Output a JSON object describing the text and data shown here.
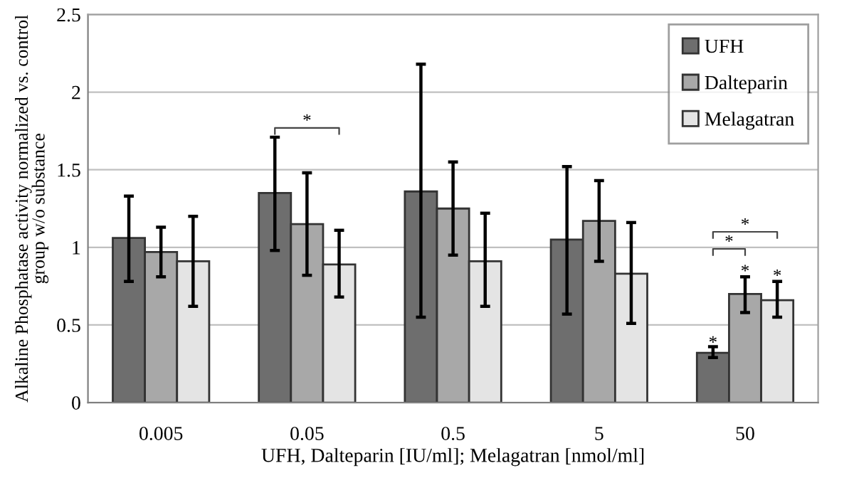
{
  "chart_data": {
    "type": "bar",
    "xlabel": "UFH, Dalteparin [IU/ml]; Melagatran [nmol/ml]",
    "ylabel": "Alkaline Phosphatase activity normalized vs. control\ngroup w/o substance",
    "categories": [
      "0.005",
      "0.05",
      "0.5",
      "5",
      "50"
    ],
    "series": [
      {
        "name": "UFH",
        "color": "#6e6e6e",
        "values": [
          1.06,
          1.35,
          1.36,
          1.05,
          0.32
        ],
        "errors": [
          [
            0.78,
            1.33
          ],
          [
            0.98,
            1.71
          ],
          [
            0.55,
            2.18
          ],
          [
            0.57,
            1.52
          ],
          [
            0.29,
            0.36
          ]
        ]
      },
      {
        "name": "Dalteparin",
        "color": "#a8a8a8",
        "values": [
          0.97,
          1.15,
          1.25,
          1.17,
          0.7
        ],
        "errors": [
          [
            0.81,
            1.13
          ],
          [
            0.82,
            1.48
          ],
          [
            0.95,
            1.55
          ],
          [
            0.91,
            1.43
          ],
          [
            0.58,
            0.81
          ]
        ]
      },
      {
        "name": "Melagatran",
        "color": "#e4e4e4",
        "values": [
          0.91,
          0.89,
          0.91,
          0.83,
          0.66
        ],
        "errors": [
          [
            0.62,
            1.2
          ],
          [
            0.68,
            1.11
          ],
          [
            0.62,
            1.22
          ],
          [
            0.51,
            1.16
          ],
          [
            0.55,
            0.78
          ]
        ]
      }
    ],
    "ylim": [
      0,
      2.5
    ],
    "yticks": [
      0,
      0.5,
      1,
      1.5,
      2,
      2.5
    ],
    "grid": "y",
    "legend": "top right",
    "annotations": [
      "*",
      "*",
      "*",
      "*",
      "*",
      "*"
    ]
  }
}
